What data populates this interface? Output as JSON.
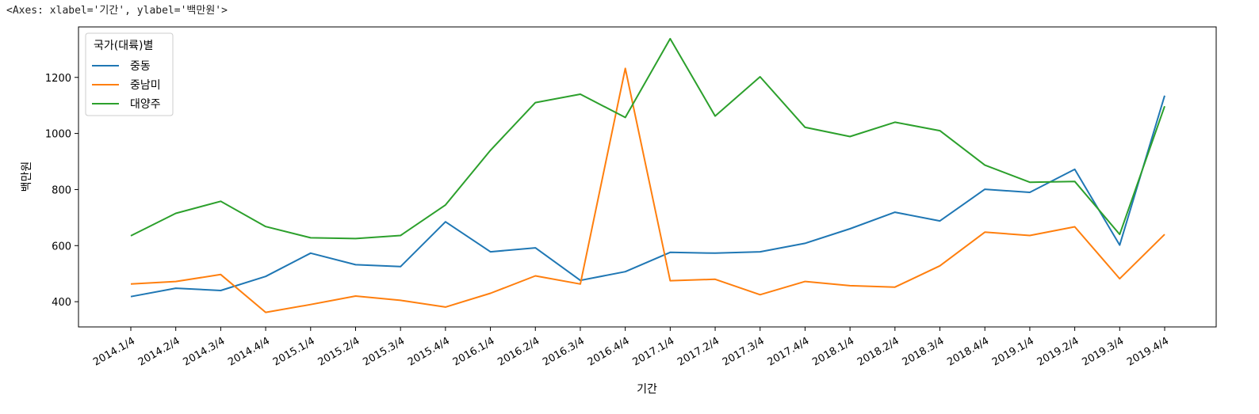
{
  "header": {
    "axes_repr": "<Axes: xlabel='기간', ylabel='백만원'>"
  },
  "chart_data": {
    "type": "line",
    "xlabel": "기간",
    "ylabel": "백만원",
    "ylim": [
      310,
      1380
    ],
    "yticks": [
      400,
      600,
      800,
      1000,
      1200
    ],
    "grid": false,
    "legend": {
      "title": "국가(대륙)별",
      "placement": "top-left"
    },
    "categories": [
      "2014.1/4",
      "2014.2/4",
      "2014.3/4",
      "2014.4/4",
      "2015.1/4",
      "2015.2/4",
      "2015.3/4",
      "2015.4/4",
      "2016.1/4",
      "2016.2/4",
      "2016.3/4",
      "2016.4/4",
      "2017.1/4",
      "2017.2/4",
      "2017.3/4",
      "2017.4/4",
      "2018.1/4",
      "2018.2/4",
      "2018.3/4",
      "2018.4/4",
      "2019.1/4",
      "2019.2/4",
      "2019.3/4",
      "2019.4/4"
    ],
    "series": [
      {
        "name": "중동",
        "color": "#1f77b4",
        "values": [
          418,
          448,
          440,
          490,
          573,
          532,
          525,
          685,
          578,
          592,
          476,
          507,
          576,
          573,
          578,
          608,
          660,
          719,
          688,
          801,
          790,
          872,
          602,
          1135
        ]
      },
      {
        "name": "중남미",
        "color": "#ff7f0e",
        "values": [
          463,
          472,
          497,
          362,
          390,
          420,
          405,
          381,
          430,
          492,
          463,
          1232,
          475,
          480,
          425,
          472,
          457,
          452,
          528,
          648,
          636,
          667,
          482,
          640
        ]
      },
      {
        "name": "대양주",
        "color": "#2ca02c",
        "values": [
          635,
          715,
          758,
          668,
          628,
          625,
          636,
          745,
          940,
          1110,
          1140,
          1057,
          1338,
          1062,
          1202,
          1022,
          989,
          1040,
          1010,
          887,
          826,
          829,
          640,
          1097
        ]
      }
    ]
  }
}
